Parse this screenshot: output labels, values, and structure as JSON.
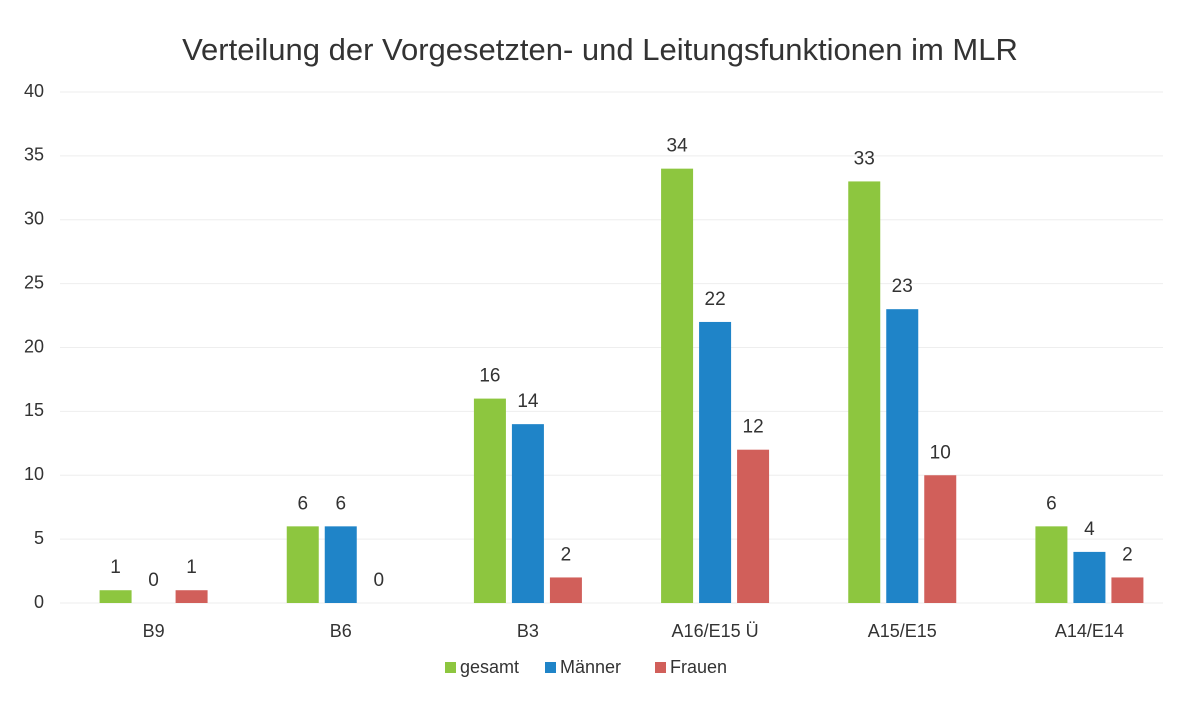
{
  "chart_data": {
    "type": "bar",
    "title": "Verteilung der Vorgesetzten- und Leitungsfunktionen im MLR",
    "categories": [
      "B9",
      "B6",
      "B3",
      "A16/E15 Ü",
      "A15/E15",
      "A14/E14"
    ],
    "series": [
      {
        "name": "gesamt",
        "color": "#8dc63f",
        "values": [
          1,
          6,
          16,
          34,
          33,
          6
        ]
      },
      {
        "name": "Männer",
        "color": "#1f84c8",
        "values": [
          0,
          6,
          14,
          22,
          23,
          4
        ]
      },
      {
        "name": "Frauen",
        "color": "#d15f5a",
        "values": [
          1,
          0,
          2,
          12,
          10,
          2
        ]
      }
    ],
    "ylim": [
      0,
      40
    ],
    "yticks": [
      0,
      5,
      10,
      15,
      20,
      25,
      30,
      35,
      40
    ],
    "grid": true,
    "legend": "bottom"
  }
}
